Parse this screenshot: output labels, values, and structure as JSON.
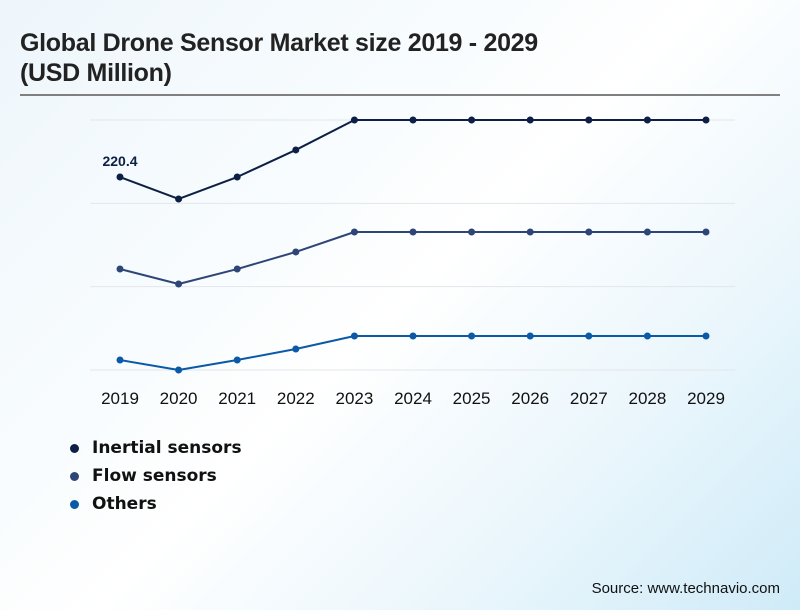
{
  "chart_data": {
    "type": "line",
    "title": "Global Drone Sensor Market size 2019 - 2029 (USD Million)",
    "title_lines": [
      "Global Drone Sensor Market size 2019 - 2029",
      "(USD Million)"
    ],
    "xlabel": "",
    "ylabel": "",
    "x": [
      "2019",
      "2020",
      "2021",
      "2022",
      "2023",
      "2024",
      "2025",
      "2026",
      "2027",
      "2028",
      "2029"
    ],
    "ylim": [
      0,
      285.5
    ],
    "grid": true,
    "legend_position": "bottom-left",
    "series": [
      {
        "name": "Inertial sensors",
        "color": "#0d1f45",
        "values": [
          220.4,
          195.3,
          220.4,
          251.3,
          285.5,
          285.5,
          285.5,
          285.5,
          285.5,
          285.5,
          285.5
        ]
      },
      {
        "name": "Flow sensors",
        "color": "#2e4577",
        "values": [
          115.3,
          98.2,
          115.3,
          134.8,
          157.6,
          157.6,
          157.6,
          157.6,
          157.6,
          157.6,
          157.6
        ]
      },
      {
        "name": "Others",
        "color": "#0a5aa8",
        "values": [
          11.4,
          0.0,
          11.4,
          24.0,
          38.8,
          38.8,
          38.8,
          38.8,
          38.8,
          38.8,
          38.8
        ]
      }
    ],
    "annotations": [
      {
        "series": "Inertial sensors",
        "x": "2019",
        "text": "220.4"
      }
    ],
    "source": "Source: www.technavio.com"
  }
}
